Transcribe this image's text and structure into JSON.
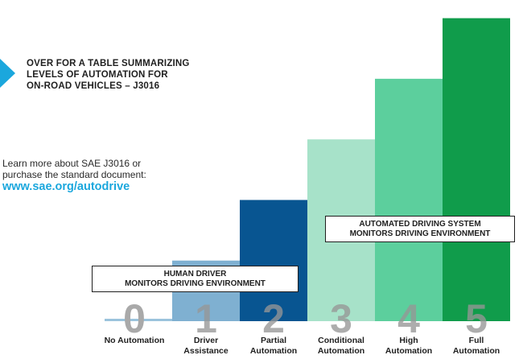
{
  "callout": {
    "icon": "arrow-right-icon",
    "lines": [
      "OVER FOR A TABLE SUMMARIZING",
      "LEVELS OF AUTOMATION FOR",
      "ON-ROAD VEHICLES – J3016"
    ]
  },
  "learn_more": {
    "lines": [
      "Learn more about SAE J3016 or",
      "purchase the standard document:"
    ],
    "link": "www.sae.org/autodrive"
  },
  "boxes": {
    "human": [
      "HUMAN DRIVER",
      "MONITORS DRIVING ENVIRONMENT"
    ],
    "automated": [
      "AUTOMATED DRIVING SYSTEM",
      "MONITORS DRIVING ENVIRONMENT"
    ]
  },
  "chart_data": {
    "type": "bar",
    "categories": [
      {
        "level": "0",
        "name": [
          "No Automation"
        ]
      },
      {
        "level": "1",
        "name": [
          "Driver",
          "Assistance"
        ]
      },
      {
        "level": "2",
        "name": [
          "Partial",
          "Automation"
        ]
      },
      {
        "level": "3",
        "name": [
          "Conditional",
          "Automation"
        ]
      },
      {
        "level": "4",
        "name": [
          "High",
          "Automation"
        ]
      },
      {
        "level": "5",
        "name": [
          "Full",
          "Automation"
        ]
      }
    ],
    "values": [
      0,
      1,
      2,
      3,
      4,
      5
    ],
    "ylim": [
      0,
      5.3
    ],
    "colors": [
      "#9bc3dc",
      "#7fb0d1",
      "#085591",
      "#a7e2c9",
      "#5ccf9d",
      "#109c4b"
    ],
    "grid": false
  }
}
